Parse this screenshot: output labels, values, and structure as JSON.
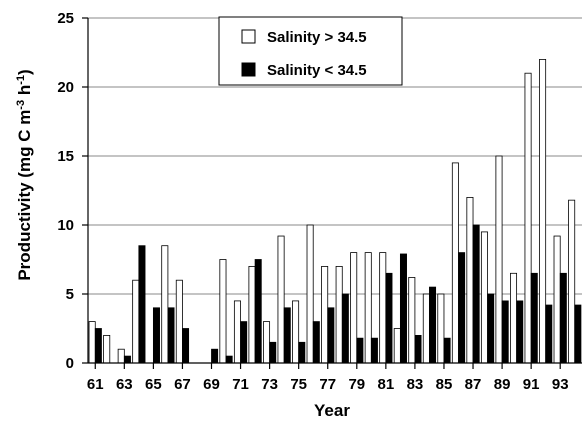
{
  "chart_data": {
    "type": "bar",
    "xlabel": "Year",
    "ylabel": "Productivity (mg C m-3 h-1)",
    "ylabel_parts": [
      "Productivity (mg C m",
      "-3",
      " h",
      "-1",
      ")"
    ],
    "ylim": [
      0,
      25
    ],
    "yticks": [
      "0",
      "5",
      "10",
      "15",
      "20",
      "25"
    ],
    "grid": true,
    "legend": "top-center",
    "categories": [
      "61",
      "62",
      "63",
      "64",
      "65",
      "66",
      "67",
      "68",
      "69",
      "70",
      "71",
      "72",
      "73",
      "74",
      "75",
      "76",
      "77",
      "78",
      "79",
      "80",
      "81",
      "82",
      "83",
      "84",
      "85",
      "86",
      "87",
      "88",
      "89",
      "90",
      "91",
      "92",
      "93",
      "94"
    ],
    "xtick_labels": [
      "61",
      "63",
      "65",
      "67",
      "69",
      "71",
      "73",
      "75",
      "77",
      "79",
      "81",
      "83",
      "85",
      "87",
      "89",
      "91",
      "93"
    ],
    "series": [
      {
        "name": "Salinity > 34.5",
        "color": "#ffffff",
        "values": [
          3,
          2,
          1,
          6,
          null,
          8.5,
          6,
          null,
          null,
          7.5,
          4.5,
          7,
          3,
          9.2,
          4.5,
          10,
          7,
          7,
          8,
          8,
          8,
          2.5,
          6.2,
          5,
          5,
          14.5,
          12,
          9.5,
          15,
          6.5,
          21,
          22,
          9.2,
          11.8
        ]
      },
      {
        "name": "Salinity < 34.5",
        "color": "#000000",
        "values": [
          2.5,
          null,
          0.5,
          8.5,
          4,
          4,
          2.5,
          null,
          1,
          0.5,
          3,
          7.5,
          1.5,
          4,
          1.5,
          3,
          4,
          5,
          1.8,
          1.8,
          6.5,
          7.9,
          2,
          5.5,
          1.8,
          8,
          10,
          5,
          4.5,
          4.5,
          6.5,
          4.2,
          6.5,
          4.2
        ]
      }
    ]
  }
}
